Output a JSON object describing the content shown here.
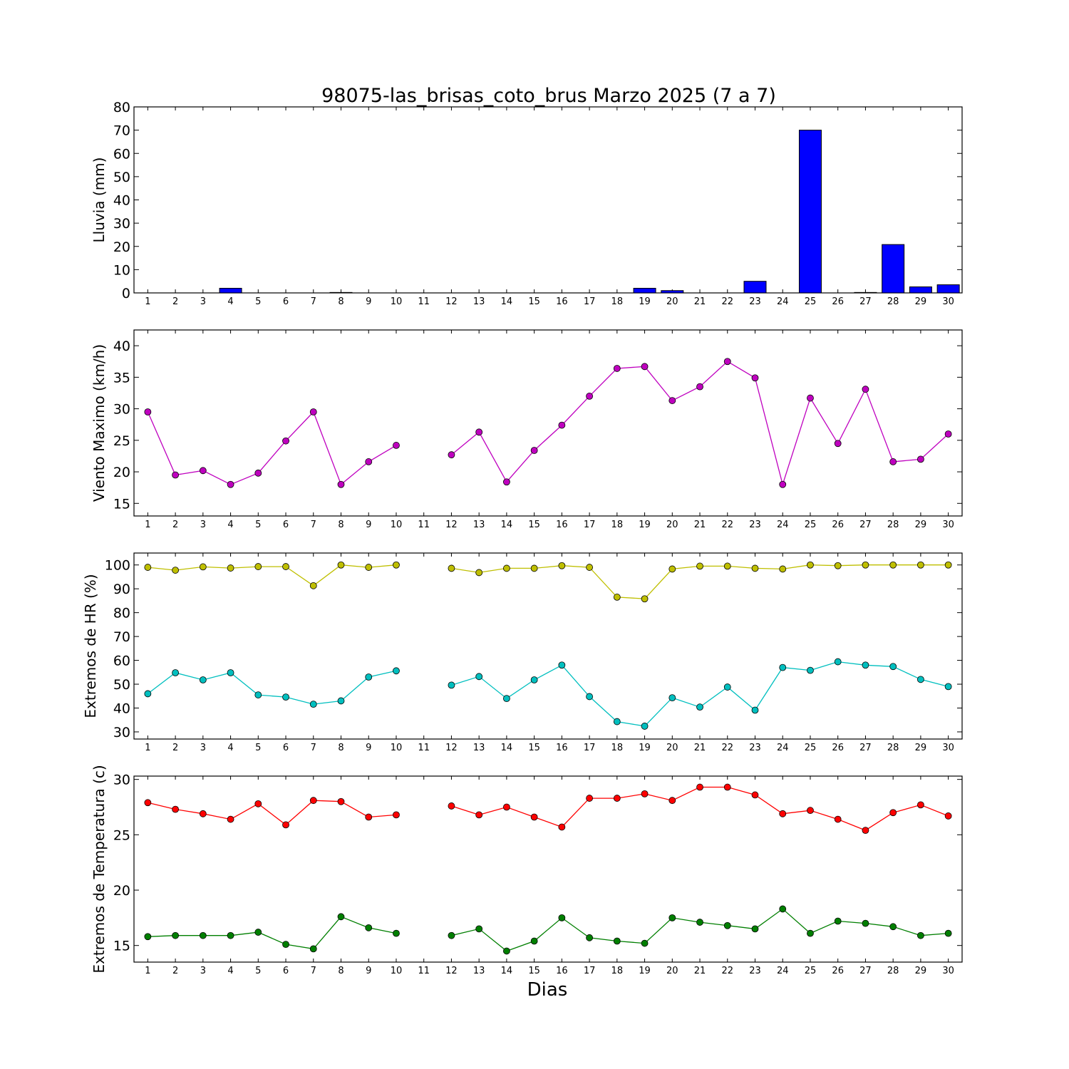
{
  "title": "98075-las_brisas_coto_brus Marzo 2025  (7 a 7)",
  "xlabel": "Dias",
  "days": [
    1,
    2,
    3,
    4,
    5,
    6,
    7,
    8,
    9,
    10,
    11,
    12,
    13,
    14,
    15,
    16,
    17,
    18,
    19,
    20,
    21,
    22,
    23,
    24,
    25,
    26,
    27,
    28,
    29,
    30
  ],
  "chart_data": [
    {
      "type": "bar",
      "ylabel": "Lluvia (mm)",
      "ylim": [
        0,
        80
      ],
      "yticks": [
        0,
        10,
        20,
        30,
        40,
        50,
        60,
        70,
        80
      ],
      "x": [
        1,
        2,
        3,
        4,
        5,
        6,
        7,
        8,
        9,
        10,
        11,
        12,
        13,
        14,
        15,
        16,
        17,
        18,
        19,
        20,
        21,
        22,
        23,
        24,
        25,
        26,
        27,
        28,
        29,
        30
      ],
      "series": [
        {
          "color": "#0000ff",
          "values": [
            0,
            0,
            0,
            2,
            0,
            0,
            0,
            0.2,
            0,
            0,
            0,
            0,
            0,
            0,
            0,
            0,
            0,
            0,
            2,
            1,
            0,
            0,
            5,
            0,
            70,
            0,
            0.2,
            20.8,
            2.6,
            3.5
          ]
        }
      ]
    },
    {
      "type": "line",
      "ylabel": "Viento Maximo (km/h)",
      "ylim": [
        13,
        42.5
      ],
      "yticks": [
        15,
        20,
        25,
        30,
        35,
        40
      ],
      "x": [
        1,
        2,
        3,
        4,
        5,
        6,
        7,
        8,
        9,
        10,
        11,
        12,
        13,
        14,
        15,
        16,
        17,
        18,
        19,
        20,
        21,
        22,
        23,
        24,
        25,
        26,
        27,
        28,
        29,
        30
      ],
      "series": [
        {
          "color": "#bf00bf",
          "values": [
            29.5,
            19.5,
            20.2,
            18,
            19.8,
            24.9,
            29.5,
            18,
            21.6,
            24.2,
            null,
            22.7,
            26.3,
            18.4,
            23.4,
            27.4,
            32,
            36.4,
            36.7,
            31.3,
            33.5,
            37.5,
            34.9,
            18,
            31.7,
            24.5,
            33.1,
            21.6,
            22,
            26
          ]
        }
      ]
    },
    {
      "type": "line",
      "ylabel": "Extremos de HR (%)",
      "ylim": [
        27,
        105
      ],
      "yticks": [
        30,
        40,
        50,
        60,
        70,
        80,
        90,
        100
      ],
      "x": [
        1,
        2,
        3,
        4,
        5,
        6,
        7,
        8,
        9,
        10,
        11,
        12,
        13,
        14,
        15,
        16,
        17,
        18,
        19,
        20,
        21,
        22,
        23,
        24,
        25,
        26,
        27,
        28,
        29,
        30
      ],
      "series": [
        {
          "color": "#bfbf00",
          "values": [
            99,
            97.8,
            99.2,
            98.7,
            99.3,
            99.3,
            91.3,
            100,
            99,
            100,
            null,
            98.6,
            96.8,
            98.6,
            98.6,
            99.7,
            99,
            86.5,
            85.8,
            98.3,
            99.5,
            99.5,
            98.6,
            98.3,
            100,
            99.7,
            100,
            100,
            100,
            100
          ]
        },
        {
          "color": "#00bfbf",
          "values": [
            46,
            54.8,
            51.8,
            54.8,
            45.5,
            44.6,
            41.6,
            43,
            53,
            55.6,
            null,
            49.6,
            53.2,
            44,
            51.8,
            58,
            44.8,
            34.3,
            32.4,
            44.3,
            40.4,
            48.8,
            39.1,
            57,
            55.8,
            59.4,
            58,
            57.4,
            52,
            49
          ]
        }
      ]
    },
    {
      "type": "line",
      "ylabel": "Extremos de Temperatura (c)",
      "ylim": [
        13.5,
        30.3
      ],
      "yticks": [
        15,
        20,
        25,
        30
      ],
      "x": [
        1,
        2,
        3,
        4,
        5,
        6,
        7,
        8,
        9,
        10,
        11,
        12,
        13,
        14,
        15,
        16,
        17,
        18,
        19,
        20,
        21,
        22,
        23,
        24,
        25,
        26,
        27,
        28,
        29,
        30
      ],
      "series": [
        {
          "color": "#ff0000",
          "values": [
            27.9,
            27.3,
            26.9,
            26.4,
            27.8,
            25.9,
            28.1,
            28,
            26.6,
            26.8,
            null,
            27.6,
            26.8,
            27.5,
            26.6,
            25.7,
            28.3,
            28.3,
            28.7,
            28.1,
            29.3,
            29.3,
            28.6,
            26.9,
            27.2,
            26.4,
            25.4,
            27,
            27.7,
            26.7
          ]
        },
        {
          "color": "#007f00",
          "values": [
            15.8,
            15.9,
            15.9,
            15.9,
            16.2,
            15.1,
            14.7,
            17.6,
            16.6,
            16.1,
            null,
            15.9,
            16.5,
            14.5,
            15.4,
            17.5,
            15.7,
            15.4,
            15.2,
            17.5,
            17.1,
            16.8,
            16.5,
            18.3,
            16.1,
            17.2,
            17,
            16.7,
            15.9,
            16.1
          ]
        }
      ]
    }
  ]
}
